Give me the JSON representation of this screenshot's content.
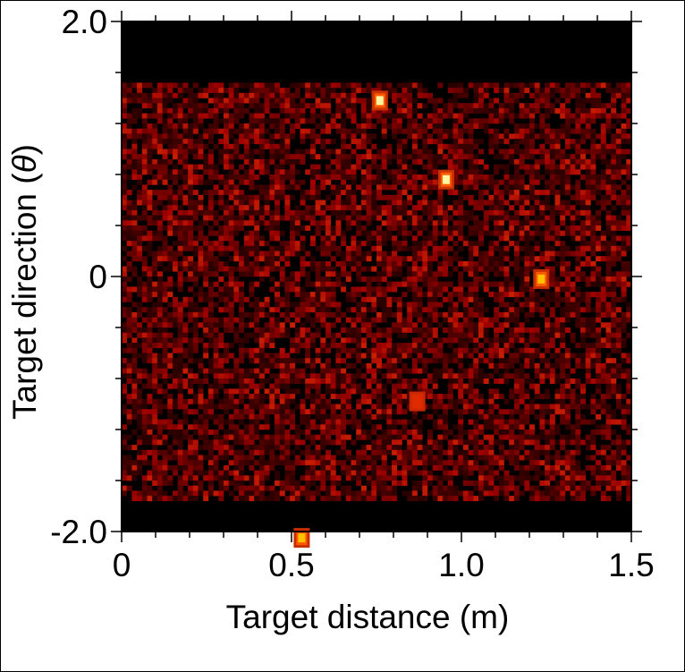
{
  "chart_data": {
    "type": "heatmap",
    "title": "",
    "xlabel": "Target distance (m)",
    "ylabel_prefix": "Target direction (",
    "ylabel_symbol": "θ",
    "ylabel_suffix": ")",
    "xlim": [
      0,
      1.5
    ],
    "ylim": [
      -2.0,
      2.0
    ],
    "x_ticks": [
      0,
      0.5,
      1.0,
      1.5
    ],
    "x_tick_labels": [
      "0",
      "0.5",
      "1.0",
      "1.5"
    ],
    "y_ticks": [
      -2.0,
      0,
      2.0
    ],
    "y_tick_labels": [
      "-2.0",
      "0",
      "2.0"
    ],
    "x_minor_step": 0.1,
    "y_minor_step": 0.4,
    "grid": false,
    "colormap": "hot",
    "background_color": "#000000",
    "noise_band_ylim": [
      -1.78,
      1.52
    ],
    "hotspots": [
      {
        "x": 0.76,
        "y": 1.38,
        "intensity": 1.0
      },
      {
        "x": 0.955,
        "y": 0.76,
        "intensity": 1.0
      },
      {
        "x": 1.235,
        "y": -0.02,
        "intensity": 0.9
      },
      {
        "x": 0.87,
        "y": -0.98,
        "intensity": 0.65
      },
      {
        "x": 0.53,
        "y": -2.05,
        "intensity": 0.85
      }
    ]
  }
}
